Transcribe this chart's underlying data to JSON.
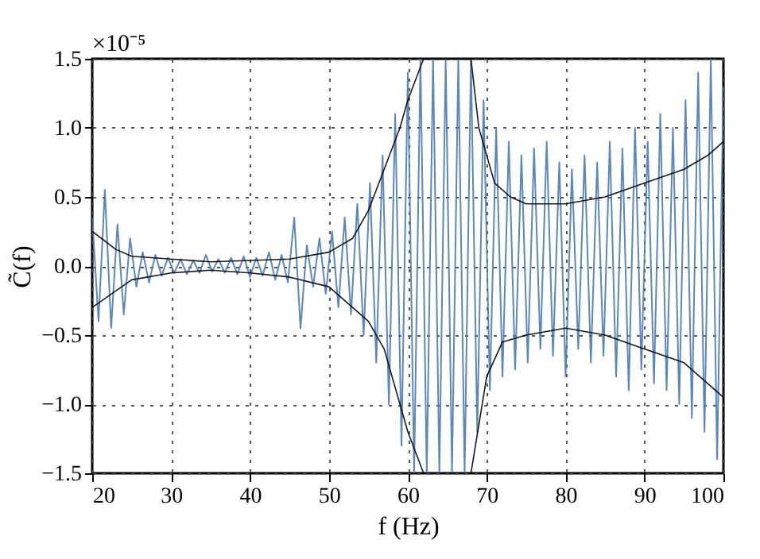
{
  "chart_data": {
    "type": "line",
    "xlabel": "f (Hz)",
    "ylabel": "C̃(f)",
    "annotations": [
      "×10⁻⁵"
    ],
    "xlim": [
      20,
      100
    ],
    "xticks": [
      20,
      30,
      40,
      50,
      60,
      70,
      80,
      90,
      100
    ],
    "ylim": [
      -1.5,
      1.5
    ],
    "yticks": [
      {
        "value": -1.5,
        "label": "−1.5"
      },
      {
        "value": -1,
        "label": "−1.0"
      },
      {
        "value": -0.5,
        "label": "−0.5"
      },
      {
        "value": 0,
        "label": "0.0"
      },
      {
        "value": 0.5,
        "label": "0.5"
      },
      {
        "value": 1,
        "label": "1.0"
      },
      {
        "value": 1.5,
        "label": "1.5"
      }
    ],
    "grid": true,
    "line_style": "solid",
    "series": [
      {
        "color": "#4a7ab5",
        "x": [
          20.0,
          20.8,
          21.6,
          22.4,
          23.2,
          24.0,
          24.8,
          25.6,
          26.4,
          27.2,
          28.0,
          28.8,
          29.6,
          30.4,
          31.2,
          32.0,
          32.8,
          33.6,
          34.4,
          35.2,
          36.0,
          36.8,
          37.6,
          38.4,
          39.2,
          40.0,
          40.8,
          41.6,
          42.4,
          43.2,
          44.0,
          44.8,
          45.6,
          46.4,
          47.2,
          48.0,
          48.8,
          49.6,
          50.4,
          51.2,
          52.0,
          52.8,
          53.6,
          54.4,
          55.2,
          56.0,
          56.8,
          57.6,
          58.4,
          59.2,
          60.0,
          60.8,
          61.6,
          62.4,
          63.2,
          64.0,
          64.8,
          65.6,
          66.4,
          67.2,
          68.0,
          68.8,
          69.6,
          70.4,
          71.2,
          72.0,
          72.8,
          73.6,
          74.4,
          75.2,
          76.0,
          76.8,
          77.6,
          78.4,
          79.2,
          80.0,
          80.8,
          81.6,
          82.4,
          83.2,
          84.0,
          84.8,
          85.6,
          86.4,
          87.2,
          88.0,
          88.8,
          89.6,
          90.4,
          91.2,
          92.0,
          92.8,
          93.6,
          94.4,
          95.2,
          96.0,
          96.8,
          97.6,
          98.4,
          99.2,
          100.0
        ],
        "values": [
          0.35,
          -0.4,
          0.55,
          -0.45,
          0.3,
          -0.35,
          0.2,
          -0.15,
          0.1,
          -0.12,
          0.08,
          -0.07,
          0.06,
          -0.05,
          0.05,
          -0.06,
          0.04,
          -0.05,
          0.08,
          -0.04,
          0.05,
          -0.05,
          0.06,
          -0.06,
          0.07,
          -0.08,
          0.06,
          -0.07,
          0.1,
          -0.1,
          0.08,
          -0.12,
          0.35,
          -0.45,
          0.15,
          -0.15,
          0.2,
          -0.2,
          0.25,
          -0.3,
          0.35,
          -0.35,
          0.45,
          -0.5,
          0.6,
          -0.7,
          0.8,
          -1.0,
          1.1,
          -1.3,
          1.4,
          -1.5,
          1.5,
          -1.5,
          1.5,
          -1.5,
          1.5,
          -1.5,
          1.5,
          -1.5,
          1.5,
          -1.2,
          1.2,
          -0.9,
          1.0,
          -0.8,
          0.9,
          -0.75,
          0.8,
          -0.7,
          0.85,
          -0.6,
          0.9,
          -0.65,
          0.75,
          -0.8,
          0.7,
          -0.6,
          0.8,
          -0.7,
          0.75,
          -0.65,
          0.9,
          -0.8,
          0.85,
          -0.9,
          1.0,
          -0.75,
          0.9,
          -0.85,
          1.1,
          -0.9,
          1.0,
          -1.0,
          1.2,
          -1.1,
          1.4,
          -1.2,
          1.5,
          -1.4,
          1.3
        ]
      },
      {
        "color": "#000000",
        "x": [
          20,
          23,
          25,
          30,
          35,
          40,
          45,
          50,
          53,
          55,
          57,
          59,
          60,
          62,
          68,
          69,
          71,
          73,
          75,
          80,
          85,
          90,
          95,
          98,
          100
        ],
        "values": [
          0.25,
          0.12,
          0.07,
          0.05,
          0.03,
          0.04,
          0.05,
          0.1,
          0.2,
          0.4,
          0.7,
          1.0,
          1.2,
          1.5,
          1.5,
          1.0,
          0.6,
          0.5,
          0.45,
          0.45,
          0.5,
          0.6,
          0.7,
          0.8,
          0.9
        ]
      },
      {
        "color": "#000000",
        "x": [
          20,
          25,
          30,
          35,
          40,
          45,
          50,
          55,
          57,
          59,
          60,
          62,
          68,
          70,
          72,
          75,
          80,
          85,
          90,
          95,
          100
        ],
        "values": [
          -0.3,
          -0.1,
          -0.05,
          -0.03,
          -0.05,
          -0.08,
          -0.15,
          -0.4,
          -0.6,
          -1.0,
          -1.2,
          -1.5,
          -1.5,
          -0.8,
          -0.55,
          -0.5,
          -0.45,
          -0.5,
          -0.6,
          -0.7,
          -0.95
        ]
      }
    ]
  }
}
